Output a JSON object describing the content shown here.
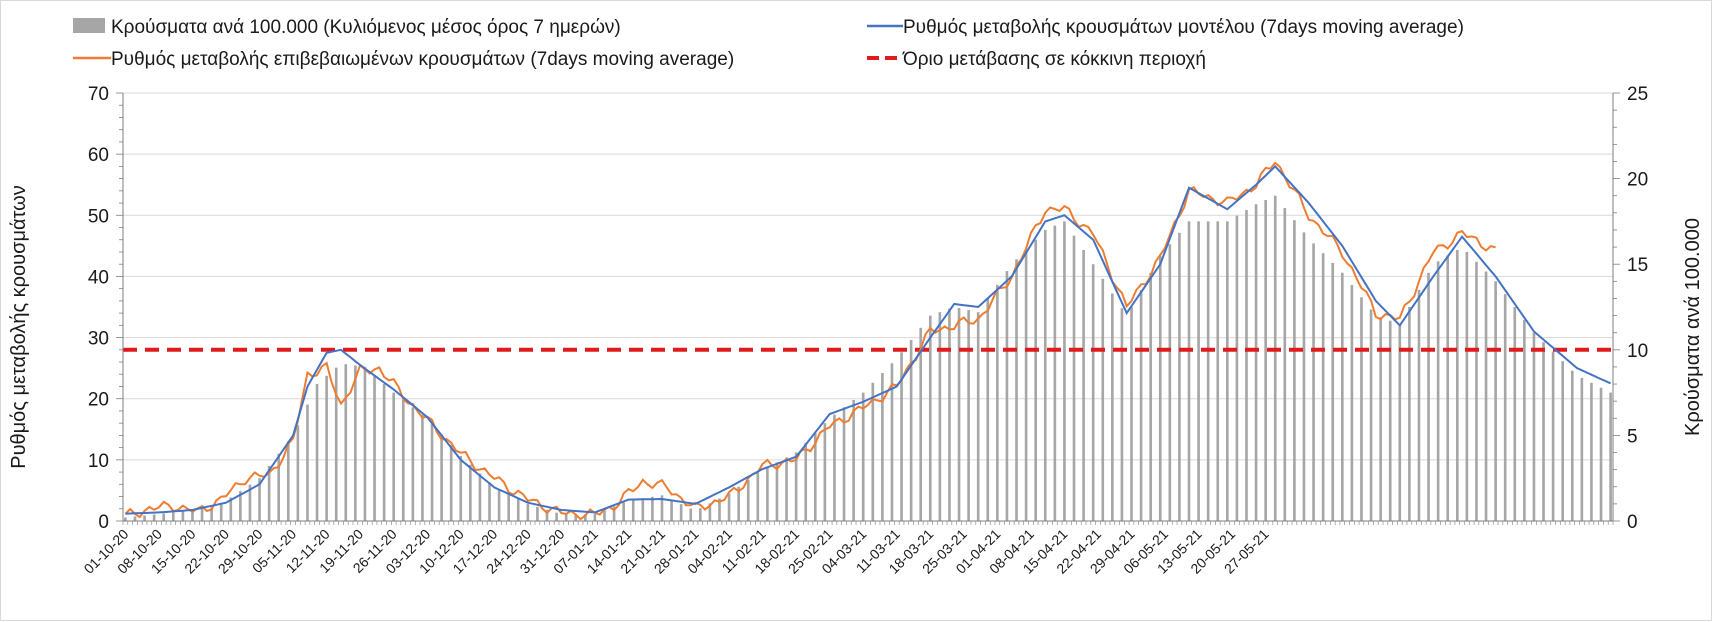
{
  "chart_data": {
    "type": "bar+line",
    "legend": {
      "bars": "Κρούσματα ανά 100.000 (Κυλιόμενος μέσος όρος 7 ημερών)",
      "model_line": "Ρυθμός μεταβολής κρουσμάτων μοντέλου (7days moving average)",
      "confirmed_line": "Ρυθμός μεταβολής επιβεβαιωμένων κρουσμάτων (7days moving average)",
      "threshold": "Όριο μετάβασης σε κόκκινη περιοχή"
    },
    "y_left_label": "Ρυθμός μεταβολής κρουσμάτων",
    "y_right_label": "Κρούσματα ανά 100.000",
    "y_left_range": [
      0,
      70
    ],
    "y_left_ticks": [
      "0",
      "10",
      "20",
      "30",
      "40",
      "50",
      "60",
      "70"
    ],
    "y_right_range": [
      0,
      25
    ],
    "y_right_ticks": [
      "0",
      "5",
      "10",
      "15",
      "20",
      "25"
    ],
    "x_tick_labels": [
      "01-10-20",
      "08-10-20",
      "15-10-20",
      "22-10-20",
      "29-10-20",
      "05-11-20",
      "12-11-20",
      "19-11-20",
      "26-11-20",
      "03-12-20",
      "10-12-20",
      "17-12-20",
      "24-12-20",
      "31-12-20",
      "07-01-21",
      "14-01-21",
      "21-01-21",
      "28-01-21",
      "04-02-21",
      "11-02-21",
      "18-02-21",
      "25-02-21",
      "04-03-21",
      "11-03-21",
      "18-03-21",
      "25-03-21",
      "01-04-21",
      "08-04-21",
      "15-04-21",
      "22-04-21",
      "29-04-21",
      "06-05-21",
      "13-05-21",
      "20-05-21",
      "27-05-21"
    ],
    "threshold_value": 28,
    "grid": "horizontal",
    "legend_position": "top",
    "colors": {
      "bars": "#a6a6a6",
      "model_line": "#4472c4",
      "confirmed_line": "#ed7d31",
      "threshold": "#e01b1b"
    },
    "model_keypoints": [
      [
        0,
        1.2
      ],
      [
        7,
        1.4
      ],
      [
        14,
        1.8
      ],
      [
        21,
        3.0
      ],
      [
        28,
        6.0
      ],
      [
        35,
        14.0
      ],
      [
        38,
        22.0
      ],
      [
        42,
        27.5
      ],
      [
        45,
        28.0
      ],
      [
        49,
        25.5
      ],
      [
        56,
        21.5
      ],
      [
        63,
        17.0
      ],
      [
        70,
        10.0
      ],
      [
        77,
        5.5
      ],
      [
        84,
        3.0
      ],
      [
        91,
        1.8
      ],
      [
        98,
        1.4
      ],
      [
        105,
        3.5
      ],
      [
        112,
        3.6
      ],
      [
        119,
        2.8
      ],
      [
        126,
        5.5
      ],
      [
        133,
        8.5
      ],
      [
        140,
        10.5
      ],
      [
        147,
        17.5
      ],
      [
        154,
        19.5
      ],
      [
        161,
        22.0
      ],
      [
        168,
        30.0
      ],
      [
        173,
        35.5
      ],
      [
        178,
        35.0
      ],
      [
        185,
        40.0
      ],
      [
        192,
        49.0
      ],
      [
        196,
        50.0
      ],
      [
        202,
        46.0
      ],
      [
        209,
        34.0
      ],
      [
        216,
        42.0
      ],
      [
        222,
        54.5
      ],
      [
        230,
        51.0
      ],
      [
        236,
        55.0
      ],
      [
        240,
        58.0
      ],
      [
        247,
        52.0
      ],
      [
        254,
        45.0
      ],
      [
        261,
        36.0
      ],
      [
        266,
        32.0
      ],
      [
        273,
        40.0
      ],
      [
        279,
        46.5
      ],
      [
        286,
        40.0
      ],
      [
        294,
        31.0
      ],
      [
        303,
        25.0
      ],
      [
        310,
        22.5
      ]
    ],
    "confirmed_keypoints": [
      [
        0,
        0.8
      ],
      [
        5,
        2.0
      ],
      [
        10,
        2.5
      ],
      [
        15,
        1.5
      ],
      [
        20,
        3.5
      ],
      [
        25,
        7.0
      ],
      [
        30,
        7.5
      ],
      [
        35,
        13.0
      ],
      [
        38,
        24.0
      ],
      [
        42,
        25.0
      ],
      [
        45,
        19.0
      ],
      [
        49,
        24.5
      ],
      [
        53,
        25.0
      ],
      [
        58,
        20.5
      ],
      [
        63,
        16.5
      ],
      [
        70,
        11.0
      ],
      [
        77,
        7.0
      ],
      [
        84,
        3.5
      ],
      [
        91,
        1.3
      ],
      [
        98,
        1.0
      ],
      [
        102,
        2.5
      ],
      [
        108,
        6.5
      ],
      [
        113,
        5.5
      ],
      [
        119,
        2.0
      ],
      [
        126,
        4.0
      ],
      [
        133,
        9.0
      ],
      [
        140,
        10.0
      ],
      [
        147,
        15.5
      ],
      [
        154,
        18.5
      ],
      [
        161,
        22.0
      ],
      [
        168,
        31.0
      ],
      [
        173,
        32.0
      ],
      [
        178,
        33.0
      ],
      [
        185,
        40.0
      ],
      [
        192,
        51.0
      ],
      [
        196,
        51.0
      ],
      [
        202,
        47.0
      ],
      [
        209,
        35.0
      ],
      [
        216,
        43.0
      ],
      [
        222,
        54.0
      ],
      [
        230,
        52.0
      ],
      [
        236,
        55.0
      ],
      [
        240,
        59.0
      ],
      [
        247,
        50.0
      ],
      [
        254,
        44.0
      ],
      [
        261,
        34.0
      ],
      [
        266,
        33.0
      ],
      [
        273,
        44.0
      ],
      [
        279,
        47.0
      ],
      [
        282,
        46.0
      ],
      [
        286,
        44.0
      ]
    ],
    "bar_keypoints": [
      [
        0,
        0.2
      ],
      [
        10,
        0.5
      ],
      [
        20,
        1.0
      ],
      [
        28,
        2.5
      ],
      [
        35,
        5.0
      ],
      [
        40,
        8.0
      ],
      [
        45,
        9.2
      ],
      [
        50,
        9.0
      ],
      [
        56,
        7.5
      ],
      [
        63,
        6.0
      ],
      [
        70,
        3.8
      ],
      [
        77,
        2.0
      ],
      [
        84,
        1.0
      ],
      [
        91,
        0.4
      ],
      [
        98,
        0.4
      ],
      [
        105,
        1.2
      ],
      [
        112,
        1.5
      ],
      [
        119,
        0.6
      ],
      [
        126,
        1.6
      ],
      [
        133,
        3.0
      ],
      [
        140,
        4.0
      ],
      [
        147,
        6.0
      ],
      [
        154,
        7.5
      ],
      [
        161,
        9.5
      ],
      [
        168,
        12.0
      ],
      [
        173,
        12.5
      ],
      [
        178,
        12.2
      ],
      [
        185,
        15.0
      ],
      [
        192,
        17.0
      ],
      [
        196,
        17.5
      ],
      [
        202,
        15.0
      ],
      [
        209,
        12.0
      ],
      [
        216,
        15.5
      ],
      [
        222,
        17.5
      ],
      [
        230,
        17.5
      ],
      [
        236,
        18.5
      ],
      [
        240,
        19.0
      ],
      [
        247,
        16.5
      ],
      [
        254,
        14.5
      ],
      [
        261,
        12.0
      ],
      [
        266,
        11.5
      ],
      [
        273,
        15.0
      ],
      [
        279,
        16.0
      ],
      [
        286,
        14.0
      ],
      [
        294,
        11.0
      ],
      [
        303,
        8.5
      ],
      [
        310,
        7.5
      ]
    ],
    "num_days": 311
  }
}
